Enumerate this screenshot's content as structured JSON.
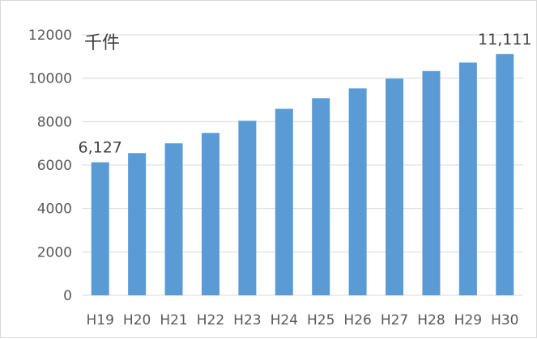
{
  "chart_data": {
    "type": "bar",
    "title": "",
    "xlabel": "",
    "ylabel": "",
    "unit_label": "千件",
    "categories": [
      "H19",
      "H20",
      "H21",
      "H22",
      "H23",
      "H24",
      "H25",
      "H26",
      "H27",
      "H28",
      "H29",
      "H30"
    ],
    "values": [
      6127,
      6550,
      7000,
      7480,
      8040,
      8590,
      9080,
      9530,
      9980,
      10330,
      10720,
      11111
    ],
    "data_labels": [
      {
        "index": 0,
        "text": "6,127"
      },
      {
        "index": 11,
        "text": "11,111"
      }
    ],
    "ylim": [
      0,
      12000
    ],
    "yticks": [
      "0",
      "2000",
      "4000",
      "6000",
      "8000",
      "10000",
      "12000"
    ],
    "grid": true,
    "legend": "none",
    "bar_color": "#5b9bd5",
    "grid_color": "#d9d9d9"
  }
}
